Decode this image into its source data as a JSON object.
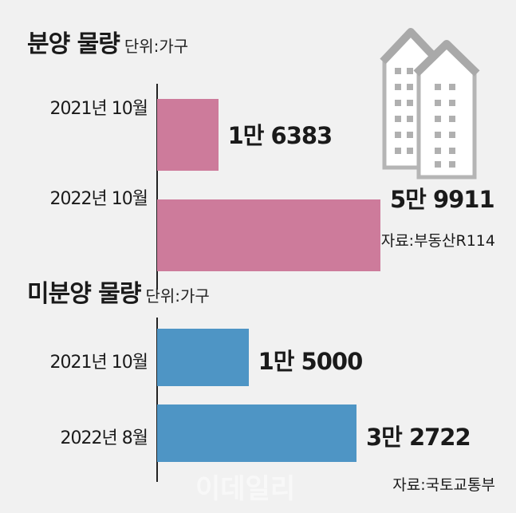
{
  "chart_data": [
    {
      "type": "bar",
      "title": "분양 물량",
      "unit": "단위:가구",
      "categories": [
        "2021년 10월",
        "2022년 10월"
      ],
      "values": [
        16383,
        59911
      ],
      "value_labels": [
        "1만 6383",
        "5만 9911"
      ],
      "source": "자료:부동산R114",
      "color": "#cd7b9b"
    },
    {
      "type": "bar",
      "title": "미분양 물량",
      "unit": "단위:가구",
      "categories": [
        "2021년 10월",
        "2022년 8월"
      ],
      "values": [
        15000,
        32722
      ],
      "value_labels": [
        "1만 5000",
        "3만 2722"
      ],
      "source": "자료:국토교통부",
      "color": "#4e95c5"
    }
  ],
  "watermark": "이데일리",
  "icons": {
    "illustration": "apartment-buildings-icon"
  }
}
